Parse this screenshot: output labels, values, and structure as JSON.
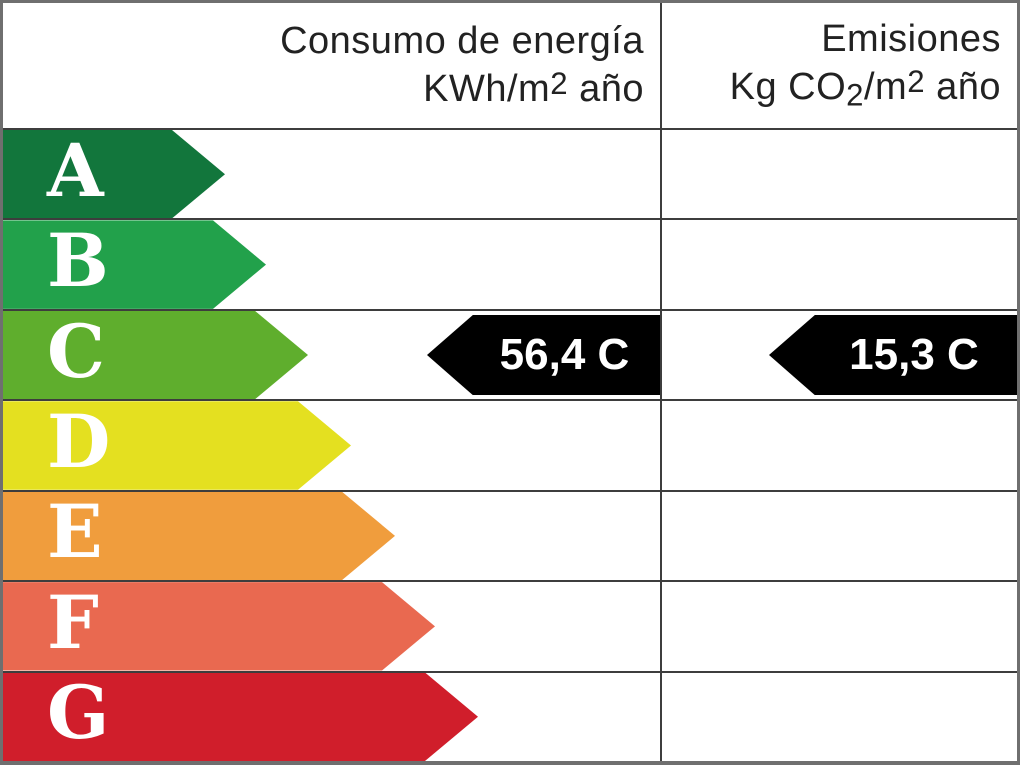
{
  "header": {
    "consumption": {
      "line1": "Consumo de energía",
      "line2_parts": [
        "KWh/m",
        "2",
        " año"
      ]
    },
    "emissions": {
      "line1": "Emisiones",
      "line2_parts": [
        "Kg CO",
        "2",
        "/m",
        "2",
        " año"
      ]
    }
  },
  "ratings": [
    {
      "letter": "A",
      "color": "#12763c",
      "arrow_width": 222
    },
    {
      "letter": "B",
      "color": "#22a14b",
      "arrow_width": 263
    },
    {
      "letter": "C",
      "color": "#5fae2d",
      "arrow_width": 305
    },
    {
      "letter": "D",
      "color": "#e4e020",
      "arrow_width": 348
    },
    {
      "letter": "E",
      "color": "#f09d3d",
      "arrow_width": 392
    },
    {
      "letter": "F",
      "color": "#e96950",
      "arrow_width": 432
    },
    {
      "letter": "G",
      "color": "#d01e2b",
      "arrow_width": 475
    }
  ],
  "values": {
    "rating_letter": "C",
    "consumption_label": "56,4 C",
    "emissions_label": "15,3 C",
    "arrow_color": "#000000",
    "consumption_arrow_width": 233,
    "emissions_arrow_width": 248
  },
  "chart_data": {
    "type": "table",
    "title": "Energy efficiency certificate label (Spanish)",
    "columns": [
      "Consumo de energía KWh/m2 año",
      "Emisiones Kg CO2/m2 año"
    ],
    "rating_scale": [
      "A",
      "B",
      "C",
      "D",
      "E",
      "F",
      "G"
    ],
    "scale_colors": [
      "#12763c",
      "#22a14b",
      "#5fae2d",
      "#e4e020",
      "#f09d3d",
      "#e96950",
      "#d01e2b"
    ],
    "assigned_rating": "C",
    "consumption_kwh_per_m2_year": 56.4,
    "emissions_kg_co2_per_m2_year": 15.3,
    "legend_position": "none",
    "grid": true
  }
}
